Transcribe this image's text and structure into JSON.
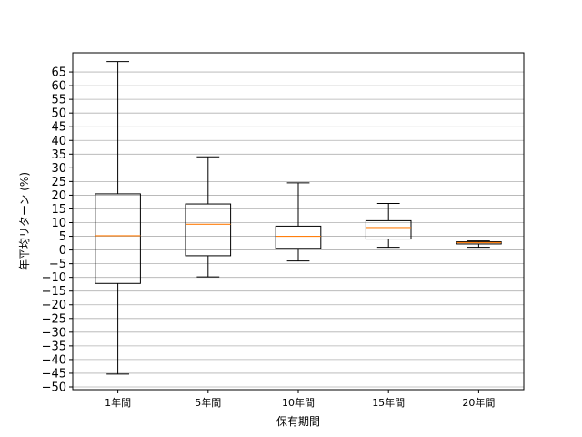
{
  "chart_data": {
    "type": "boxplot",
    "title": "",
    "xlabel": "保有期間",
    "ylabel": "年平均リターン (%)",
    "ylim": [
      -51,
      72
    ],
    "yticks": [
      -50,
      -45,
      -40,
      -35,
      -30,
      -25,
      -20,
      -15,
      -10,
      -5,
      0,
      5,
      10,
      15,
      20,
      25,
      30,
      35,
      40,
      45,
      50,
      55,
      60,
      65
    ],
    "grid": "horizontal",
    "categories": [
      "1年間",
      "5年間",
      "10年間",
      "15年間",
      "20年間"
    ],
    "boxes": [
      {
        "category": "1年間",
        "whislo": -45.3,
        "q1": -12.2,
        "med": 5.2,
        "q3": 20.5,
        "whishi": 68.8
      },
      {
        "category": "5年間",
        "whislo": -9.8,
        "q1": -2.1,
        "med": 9.4,
        "q3": 16.8,
        "whishi": 34.0
      },
      {
        "category": "10年間",
        "whislo": -4.0,
        "q1": 0.6,
        "med": 5.0,
        "q3": 8.7,
        "whishi": 24.5
      },
      {
        "category": "15年間",
        "whislo": 1.0,
        "q1": 4.0,
        "med": 8.2,
        "q3": 10.7,
        "whishi": 17.0
      },
      {
        "category": "20年間",
        "whislo": 1.0,
        "q1": 2.2,
        "med": 2.7,
        "q3": 3.0,
        "whishi": 3.3
      }
    ],
    "colors": {
      "box": "#000000",
      "median": "#ff7f0e",
      "grid": "#b0b0b0"
    }
  }
}
